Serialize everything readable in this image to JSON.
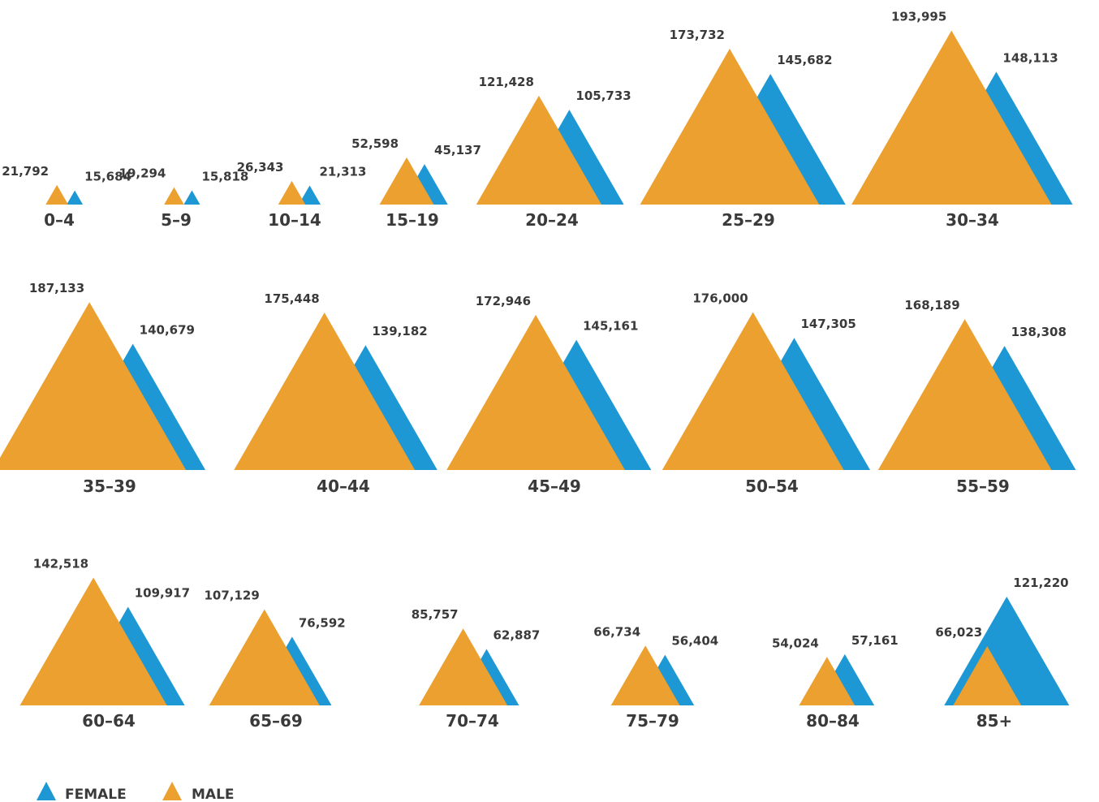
{
  "chart_data": {
    "type": "area",
    "series": [
      {
        "name": "MALE",
        "color": "#EBA02F"
      },
      {
        "name": "FEMALE",
        "color": "#1E98D4"
      }
    ],
    "legend": {
      "position": "bottom-left",
      "items": [
        "FEMALE",
        "MALE"
      ]
    },
    "groups": [
      {
        "label": "0–4",
        "male": 21792,
        "female": 15684,
        "male_label": "21,792",
        "female_label": "15,684"
      },
      {
        "label": "5–9",
        "male": 19294,
        "female": 15818,
        "male_label": "19,294",
        "female_label": "15,818"
      },
      {
        "label": "10–14",
        "male": 26343,
        "female": 21313,
        "male_label": "26,343",
        "female_label": "21,313"
      },
      {
        "label": "15–19",
        "male": 52598,
        "female": 45137,
        "male_label": "52,598",
        "female_label": "45,137"
      },
      {
        "label": "20–24",
        "male": 121428,
        "female": 105733,
        "male_label": "121,428",
        "female_label": "105,733"
      },
      {
        "label": "25–29",
        "male": 173732,
        "female": 145682,
        "male_label": "173,732",
        "female_label": "145,682"
      },
      {
        "label": "30–34",
        "male": 193995,
        "female": 148113,
        "male_label": "193,995",
        "female_label": "148,113"
      },
      {
        "label": "35–39",
        "male": 187133,
        "female": 140679,
        "male_label": "187,133",
        "female_label": "140,679"
      },
      {
        "label": "40–44",
        "male": 175448,
        "female": 139182,
        "male_label": "175,448",
        "female_label": "139,182"
      },
      {
        "label": "45–49",
        "male": 172946,
        "female": 145161,
        "male_label": "172,946",
        "female_label": "145,161"
      },
      {
        "label": "50–54",
        "male": 176000,
        "female": 147305,
        "male_label": "176,000",
        "female_label": "147,305"
      },
      {
        "label": "55–59",
        "male": 168189,
        "female": 138308,
        "male_label": "168,189",
        "female_label": "138,308"
      },
      {
        "label": "60–64",
        "male": 142518,
        "female": 109917,
        "male_label": "142,518",
        "female_label": "109,917"
      },
      {
        "label": "65–69",
        "male": 107129,
        "female": 76592,
        "male_label": "107,129",
        "female_label": "76,592"
      },
      {
        "label": "70–74",
        "male": 85757,
        "female": 62887,
        "male_label": "85,757",
        "female_label": "62,887"
      },
      {
        "label": "75–79",
        "male": 66734,
        "female": 56404,
        "male_label": "66,734",
        "female_label": "56,404"
      },
      {
        "label": "80–84",
        "male": 54024,
        "female": 57161,
        "male_label": "54,024",
        "female_label": "57,161"
      },
      {
        "label": "85+",
        "male": 66023,
        "female": 121220,
        "male_label": "66,023",
        "female_label": "121,220"
      }
    ]
  }
}
